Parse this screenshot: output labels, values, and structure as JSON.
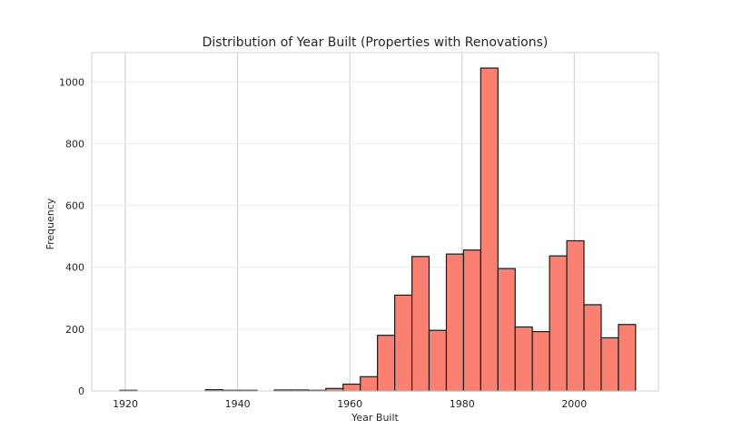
{
  "chart_data": {
    "type": "bar",
    "title": "Distribution of Year Built (Properties with Renovations)",
    "xlabel": "Year Built",
    "ylabel": "Frequency",
    "xlim": [
      1914,
      2015
    ],
    "ylim": [
      0,
      1095
    ],
    "xticks": [
      1920,
      1940,
      1960,
      1980,
      2000
    ],
    "yticks": [
      0,
      200,
      400,
      600,
      800,
      1000
    ],
    "grid": true,
    "bar_color": "#fa8072",
    "edge_color": "#1a1a1a",
    "bin_width": 3.0667,
    "bin_edges_start": 1919,
    "values": [
      2,
      0,
      0,
      0,
      0,
      4,
      2,
      2,
      0,
      3,
      3,
      2,
      8,
      22,
      46,
      180,
      310,
      435,
      196,
      443,
      456,
      1045,
      396,
      207,
      192,
      437,
      486,
      279,
      172,
      215
    ],
    "bars": [
      {
        "x0": 1919.0,
        "x1": 1922.07,
        "value": 2
      },
      {
        "x0": 1922.07,
        "x1": 1925.13,
        "value": 0
      },
      {
        "x0": 1934.27,
        "x1": 1937.33,
        "value": 4
      },
      {
        "x0": 1937.33,
        "x1": 1940.4,
        "value": 2
      },
      {
        "x0": 1940.4,
        "x1": 1943.47,
        "value": 2
      },
      {
        "x0": 1946.53,
        "x1": 1949.6,
        "value": 3
      },
      {
        "x0": 1949.6,
        "x1": 1952.67,
        "value": 3
      },
      {
        "x0": 1952.67,
        "x1": 1955.73,
        "value": 2
      },
      {
        "x0": 1955.73,
        "x1": 1958.8,
        "value": 8
      },
      {
        "x0": 1958.8,
        "x1": 1961.87,
        "value": 22
      },
      {
        "x0": 1961.87,
        "x1": 1964.93,
        "value": 46
      },
      {
        "x0": 1964.93,
        "x1": 1968.0,
        "value": 180
      },
      {
        "x0": 1968.0,
        "x1": 1971.07,
        "value": 310
      },
      {
        "x0": 1971.07,
        "x1": 1974.13,
        "value": 435
      },
      {
        "x0": 1974.13,
        "x1": 1977.2,
        "value": 196
      },
      {
        "x0": 1977.2,
        "x1": 1980.27,
        "value": 443
      },
      {
        "x0": 1980.27,
        "x1": 1983.33,
        "value": 456
      },
      {
        "x0": 1983.33,
        "x1": 1986.4,
        "value": 1045
      },
      {
        "x0": 1986.4,
        "x1": 1989.47,
        "value": 396
      },
      {
        "x0": 1989.47,
        "x1": 1992.53,
        "value": 207
      },
      {
        "x0": 1992.53,
        "x1": 1995.6,
        "value": 192
      },
      {
        "x0": 1995.6,
        "x1": 1998.67,
        "value": 437
      },
      {
        "x0": 1998.67,
        "x1": 2001.73,
        "value": 486
      },
      {
        "x0": 2001.73,
        "x1": 2004.8,
        "value": 279
      },
      {
        "x0": 2004.8,
        "x1": 2007.87,
        "value": 172
      },
      {
        "x0": 2007.87,
        "x1": 2010.93,
        "value": 215
      }
    ]
  }
}
